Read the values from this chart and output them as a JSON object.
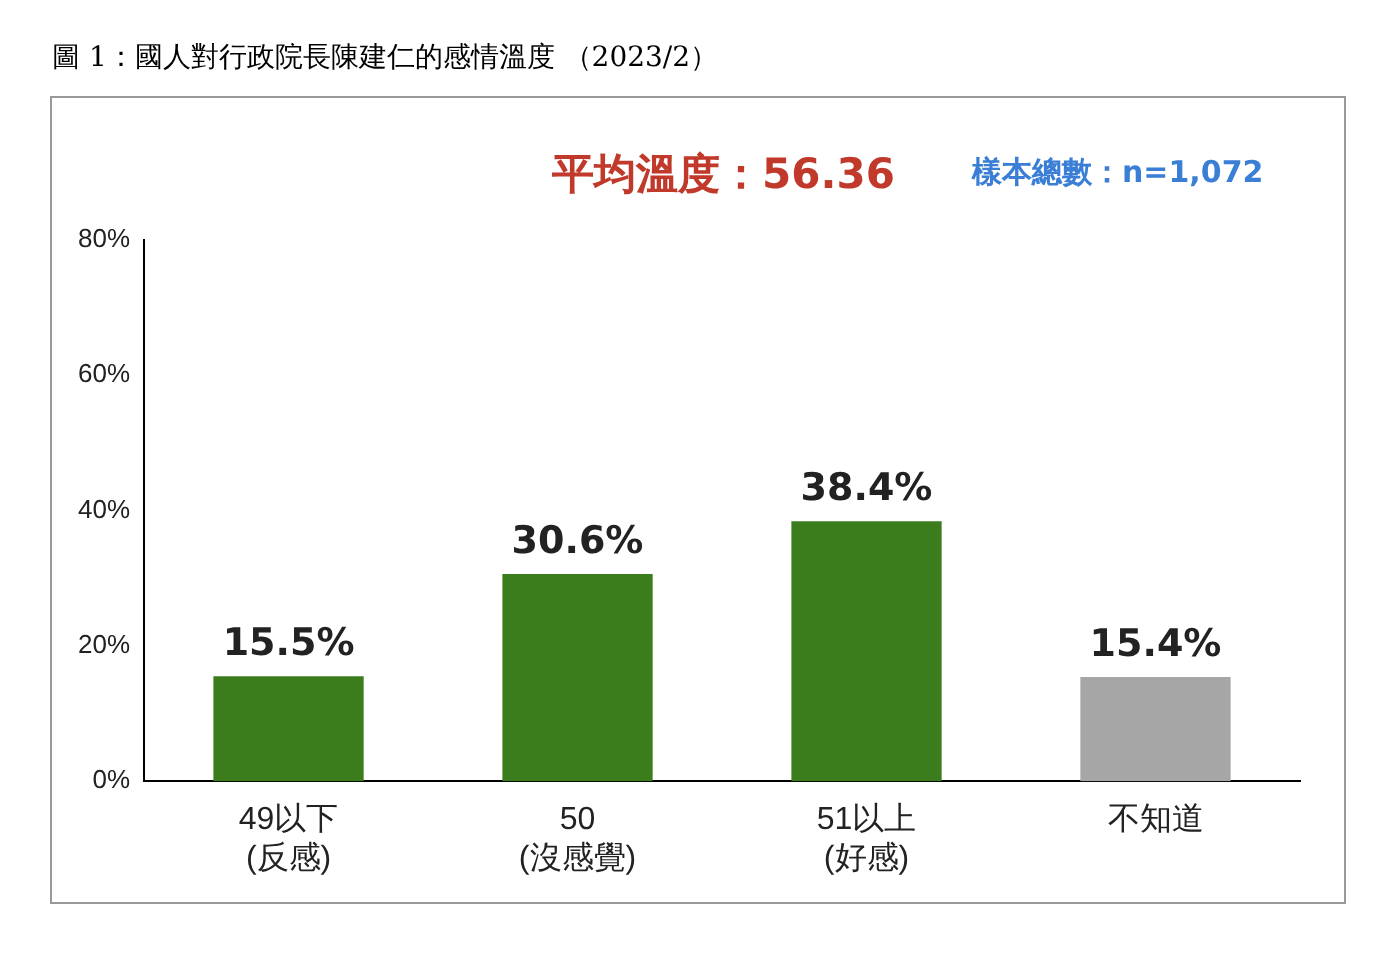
{
  "chart_data": {
    "type": "bar",
    "title": "圖 1：國人對行政院長陳建仁的感情溫度 （2023/2）",
    "annotations": [
      "平均溫度：56.36",
      "樣本總數：n=1,072"
    ],
    "categories": [
      "49以下\n(反感)",
      "50\n(沒感覺)",
      "51以上\n(好感)",
      "不知道"
    ],
    "values": [
      15.5,
      30.6,
      38.4,
      15.4
    ],
    "colors": [
      "#3b7d1c",
      "#3b7d1c",
      "#3b7d1c",
      "#a6a6a6"
    ],
    "value_labels": [
      "15.5%",
      "30.6%",
      "38.4%",
      "15.4%"
    ],
    "ylim": [
      0,
      80
    ],
    "yticks": [
      {
        "value": 0,
        "label": "0%"
      },
      {
        "value": 20,
        "label": "20%"
      },
      {
        "value": 40,
        "label": "40%"
      },
      {
        "value": 60,
        "label": "60%"
      },
      {
        "value": 80,
        "label": "80%"
      }
    ],
    "grid": false,
    "legend": false
  }
}
